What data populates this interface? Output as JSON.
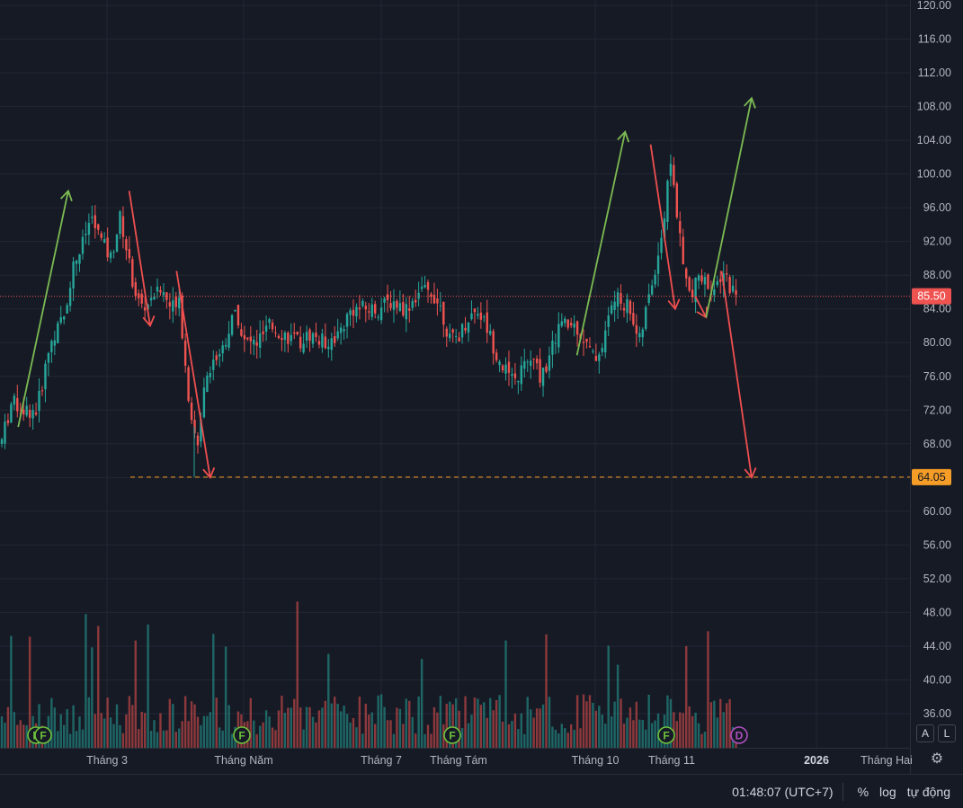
{
  "chart_data": {
    "type": "candlestick",
    "price_axis": {
      "ticks": [
        "120.00",
        "116.00",
        "112.00",
        "108.00",
        "104.00",
        "100.00",
        "96.00",
        "92.00",
        "88.00",
        "84.00",
        "80.00",
        "76.00",
        "72.00",
        "68.00",
        "64.00",
        "60.00",
        "56.00",
        "52.00",
        "48.00",
        "44.00",
        "40.00",
        "36.00"
      ],
      "range": [
        34,
        120.5
      ]
    },
    "time_axis": {
      "labels": [
        "Tháng 3",
        "Tháng Năm",
        "Tháng 7",
        "Tháng Tám",
        "Tháng 10",
        "Tháng 11",
        "2026",
        "Tháng Hai"
      ]
    },
    "last_price": "85.50",
    "level_price": "64.05",
    "levels": {
      "last": 85.5,
      "dashed": 64.05
    },
    "colors": {
      "up": "#26a69a",
      "down": "#ef5350",
      "arrow_up": "#7cbb52",
      "arrow_down": "#ef4f4f",
      "level_line": "#f59d26",
      "last_line": "#ef5350"
    },
    "event_markers": [
      {
        "label": "F",
        "type": "earnings"
      },
      {
        "label": "F",
        "type": "earnings"
      },
      {
        "label": "F",
        "type": "earnings"
      },
      {
        "label": "F",
        "type": "earnings"
      },
      {
        "label": "F",
        "type": "earnings"
      },
      {
        "label": "D",
        "type": "dividend"
      }
    ],
    "annotations": {
      "arrows": [
        {
          "color": "up",
          "from": [
            0.02,
            70
          ],
          "to": [
            0.075,
            98
          ]
        },
        {
          "color": "down",
          "from": [
            0.142,
            98
          ],
          "to": [
            0.165,
            82
          ]
        },
        {
          "color": "down",
          "from": [
            0.194,
            88.5
          ],
          "to": [
            0.231,
            64
          ]
        },
        {
          "color": "up",
          "from": [
            0.634,
            78.5
          ],
          "to": [
            0.687,
            105
          ]
        },
        {
          "color": "down",
          "from": [
            0.715,
            103.5
          ],
          "to": [
            0.742,
            84
          ]
        },
        {
          "color": "down",
          "from": [
            0.764,
            85.5
          ],
          "to": [
            0.776,
            83
          ]
        },
        {
          "color": "up",
          "from": [
            0.776,
            83
          ],
          "to": [
            0.826,
            109
          ]
        },
        {
          "color": "down",
          "from": [
            0.793,
            88.5
          ],
          "to": [
            0.826,
            64
          ]
        }
      ]
    }
  },
  "axis_buttons": {
    "auto": "A",
    "log": "L"
  },
  "bottom_bar": {
    "clock": "01:48:07 (UTC+7)",
    "percent": "%",
    "log": "log",
    "auto": "tự động"
  }
}
